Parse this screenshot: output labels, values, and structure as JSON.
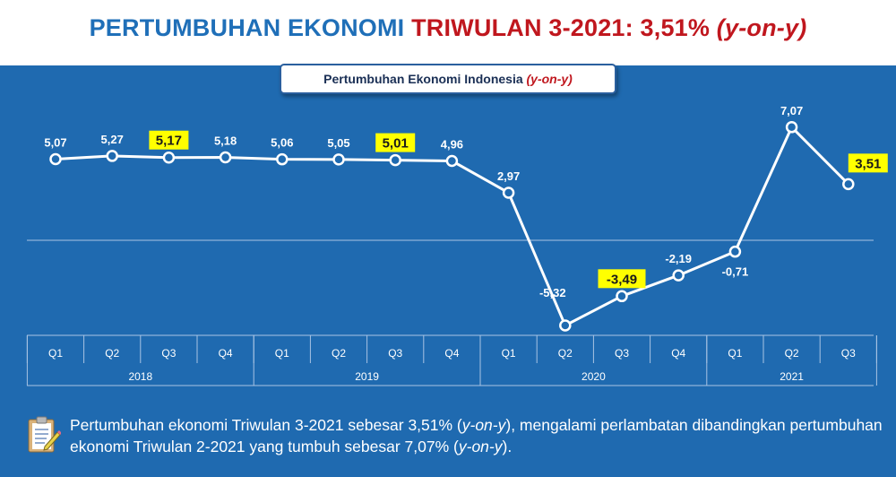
{
  "title": {
    "part1": "PERTUMBUHAN EKONOMI",
    "part2": "TRIWULAN 3-2021: 3,51%",
    "part3": "(y-on-y)"
  },
  "subtitle": {
    "main": "Pertumbuhan Ekonomi Indonesia",
    "suffix": "(y-on-y)"
  },
  "chart_data": {
    "type": "line",
    "title": "Pertumbuhan Ekonomi Indonesia (y-on-y)",
    "quarters": [
      "Q1",
      "Q2",
      "Q3",
      "Q4",
      "Q1",
      "Q2",
      "Q3",
      "Q4",
      "Q1",
      "Q2",
      "Q3",
      "Q4",
      "Q1",
      "Q2",
      "Q3"
    ],
    "years": [
      {
        "label": "2018",
        "count": 4
      },
      {
        "label": "2019",
        "count": 4
      },
      {
        "label": "2020",
        "count": 4
      },
      {
        "label": "2021",
        "count": 3
      }
    ],
    "values": [
      5.07,
      5.27,
      5.17,
      5.18,
      5.06,
      5.05,
      5.01,
      4.96,
      2.97,
      -5.32,
      -3.49,
      -2.19,
      -0.71,
      7.07,
      3.51
    ],
    "labels": [
      "5,07",
      "5,27",
      "5,17",
      "5,18",
      "5,06",
      "5,05",
      "5,01",
      "4,96",
      "2,97",
      "-5,32",
      "-3,49",
      "-2,19",
      "-0,71",
      "7,07",
      "3,51"
    ],
    "highlighted": [
      2,
      6,
      10,
      14
    ],
    "label_position": [
      "above",
      "above",
      "above",
      "above",
      "above",
      "above",
      "above",
      "above",
      "above",
      "left",
      "above",
      "above",
      "below",
      "above",
      "above-right"
    ],
    "colors": {
      "background": "#1f6ab0",
      "line": "#ffffff",
      "highlight": "#ffff00",
      "axis": "#a9c4e4"
    },
    "grid": false,
    "legend": "none"
  },
  "note": {
    "segments": [
      {
        "text": "Pertumbuhan ekonomi Triwulan 3-2021 sebesar 3,51%  (",
        "italic": false
      },
      {
        "text": "y-on-y",
        "italic": true
      },
      {
        "text": "), mengalami perlambatan dibandingkan pertumbuhan ekonomi Triwulan 2-2021 yang tumbuh sebesar 7,07% (",
        "italic": false
      },
      {
        "text": "y-on-y",
        "italic": true
      },
      {
        "text": ").",
        "italic": false
      }
    ],
    "icon": "clipboard-icon"
  }
}
